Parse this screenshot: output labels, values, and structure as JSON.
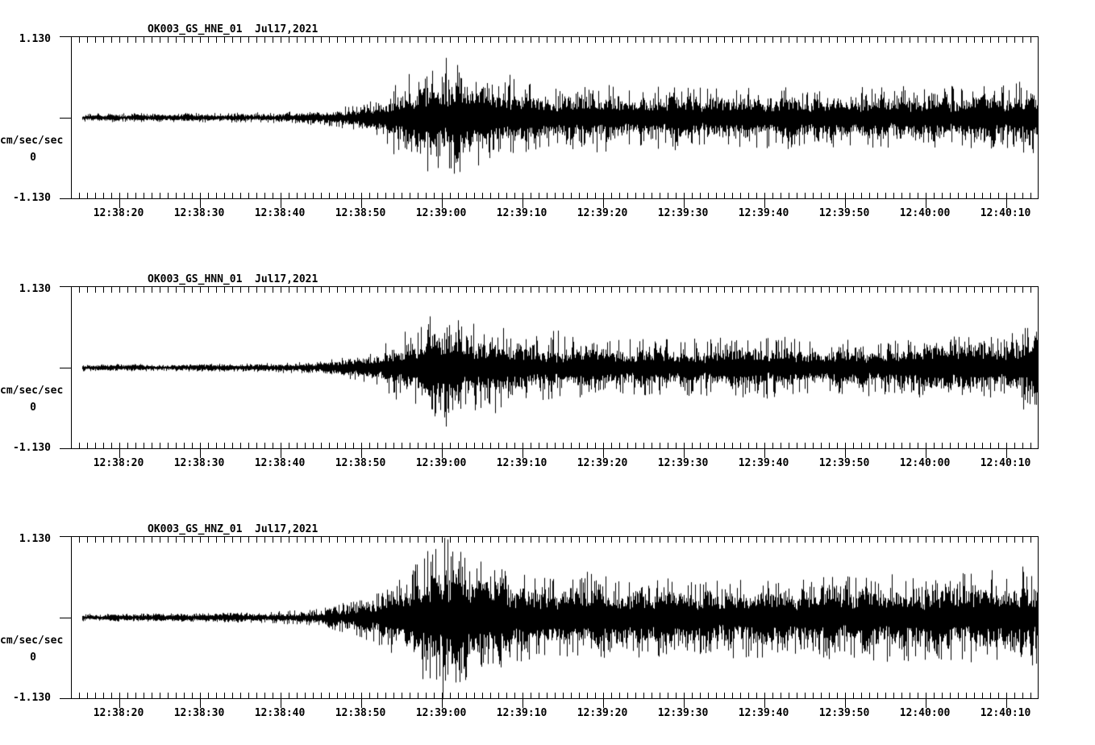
{
  "page": {
    "background": "#ffffff",
    "ink": "#000000"
  },
  "chart_data": [
    {
      "type": "line",
      "kind": "seismogram-waveform",
      "title": "OK003_GS_HNE_01  Jul17,2021",
      "station_channel": "OK003_GS_HNE_01",
      "date_label": "Jul17,2021",
      "ylabel": "cm/sec/sec",
      "ylim": [
        -1.13,
        1.13
      ],
      "ytick_labels": {
        "top": "1.130",
        "mid": "0",
        "bottom": "-1.130"
      },
      "x_tick_labels": [
        "12:38:20",
        "12:38:30",
        "12:38:40",
        "12:38:50",
        "12:39:00",
        "12:39:10",
        "12:39:20",
        "12:39:30",
        "12:39:40",
        "12:39:50",
        "12:40:00",
        "12:40:10"
      ],
      "x_axis": {
        "span_sec": 119.8,
        "first_label_offset_sec": 5.9,
        "major_interval_sec": 10,
        "minor_interval_sec": 1,
        "grid": false
      },
      "trace": {
        "units": "cm/sec/sec",
        "start_offset_sec": 1.3,
        "envelope_desc": "[offset_sec, core_amplitude, peak_amplitude]",
        "envelope": [
          [
            1.3,
            0.03,
            0.06
          ],
          [
            20,
            0.035,
            0.07
          ],
          [
            27,
            0.045,
            0.09
          ],
          [
            31,
            0.06,
            0.11
          ],
          [
            34,
            0.09,
            0.16
          ],
          [
            36.5,
            0.12,
            0.22
          ],
          [
            38.5,
            0.17,
            0.34
          ],
          [
            40,
            0.26,
            0.55
          ],
          [
            42,
            0.32,
            0.65
          ],
          [
            44,
            0.36,
            0.75
          ],
          [
            45.8,
            0.4,
            0.88
          ],
          [
            47.5,
            0.4,
            0.82
          ],
          [
            49.5,
            0.36,
            0.78
          ],
          [
            51.5,
            0.3,
            0.58
          ],
          [
            53.5,
            0.3,
            0.68
          ],
          [
            55.5,
            0.26,
            0.5
          ],
          [
            58,
            0.24,
            0.46
          ],
          [
            62,
            0.23,
            0.44
          ],
          [
            66,
            0.24,
            0.5
          ],
          [
            70,
            0.22,
            0.42
          ],
          [
            75,
            0.22,
            0.46
          ],
          [
            80,
            0.21,
            0.42
          ],
          [
            85,
            0.21,
            0.44
          ],
          [
            90,
            0.22,
            0.46
          ],
          [
            95,
            0.21,
            0.42
          ],
          [
            100,
            0.21,
            0.44
          ],
          [
            105,
            0.22,
            0.46
          ],
          [
            110,
            0.23,
            0.44
          ],
          [
            114,
            0.24,
            0.46
          ],
          [
            117,
            0.26,
            0.5
          ],
          [
            119.8,
            0.28,
            0.52
          ]
        ]
      }
    },
    {
      "type": "line",
      "kind": "seismogram-waveform",
      "title": "OK003_GS_HNN_01  Jul17,2021",
      "station_channel": "OK003_GS_HNN_01",
      "date_label": "Jul17,2021",
      "ylabel": "cm/sec/sec",
      "ylim": [
        -1.13,
        1.13
      ],
      "ytick_labels": {
        "top": "1.130",
        "mid": "0",
        "bottom": "-1.130"
      },
      "x_tick_labels": [
        "12:38:20",
        "12:38:30",
        "12:38:40",
        "12:38:50",
        "12:39:00",
        "12:39:10",
        "12:39:20",
        "12:39:30",
        "12:39:40",
        "12:39:50",
        "12:40:00",
        "12:40:10"
      ],
      "x_axis": {
        "span_sec": 119.8,
        "first_label_offset_sec": 5.9,
        "major_interval_sec": 10,
        "minor_interval_sec": 1,
        "grid": false
      },
      "trace": {
        "units": "cm/sec/sec",
        "start_offset_sec": 1.3,
        "envelope_desc": "[offset_sec, core_amplitude, peak_amplitude]",
        "envelope": [
          [
            1.3,
            0.025,
            0.05
          ],
          [
            20,
            0.03,
            0.055
          ],
          [
            26,
            0.04,
            0.075
          ],
          [
            30,
            0.05,
            0.09
          ],
          [
            33,
            0.07,
            0.13
          ],
          [
            36,
            0.1,
            0.19
          ],
          [
            38,
            0.14,
            0.28
          ],
          [
            40,
            0.21,
            0.44
          ],
          [
            42,
            0.28,
            0.6
          ],
          [
            44,
            0.33,
            0.7
          ],
          [
            46,
            0.37,
            0.8
          ],
          [
            47.6,
            0.38,
            0.92
          ],
          [
            49,
            0.36,
            0.8
          ],
          [
            51,
            0.3,
            0.62
          ],
          [
            53,
            0.26,
            0.68
          ],
          [
            55,
            0.23,
            0.48
          ],
          [
            58,
            0.22,
            0.44
          ],
          [
            60.5,
            0.21,
            0.55
          ],
          [
            63,
            0.2,
            0.42
          ],
          [
            68,
            0.2,
            0.4
          ],
          [
            74,
            0.19,
            0.4
          ],
          [
            80,
            0.19,
            0.42
          ],
          [
            86,
            0.2,
            0.44
          ],
          [
            92,
            0.2,
            0.42
          ],
          [
            98,
            0.19,
            0.4
          ],
          [
            104,
            0.2,
            0.42
          ],
          [
            109,
            0.21,
            0.44
          ],
          [
            113,
            0.21,
            0.42
          ],
          [
            116,
            0.24,
            0.5
          ],
          [
            118,
            0.28,
            0.6
          ],
          [
            119.8,
            0.26,
            0.52
          ]
        ]
      }
    },
    {
      "type": "line",
      "kind": "seismogram-waveform",
      "title": "OK003_GS_HNZ_01  Jul17,2021",
      "station_channel": "OK003_GS_HNZ_01",
      "date_label": "Jul17,2021",
      "ylabel": "cm/sec/sec",
      "ylim": [
        -1.13,
        1.13
      ],
      "ytick_labels": {
        "top": "1.130",
        "mid": "0",
        "bottom": "-1.130"
      },
      "x_tick_labels": [
        "12:38:20",
        "12:38:30",
        "12:38:40",
        "12:38:50",
        "12:39:00",
        "12:39:10",
        "12:39:20",
        "12:39:30",
        "12:39:40",
        "12:39:50",
        "12:40:00",
        "12:40:10"
      ],
      "x_axis": {
        "span_sec": 119.8,
        "first_label_offset_sec": 5.9,
        "major_interval_sec": 10,
        "minor_interval_sec": 1,
        "grid": false
      },
      "trace": {
        "units": "cm/sec/sec",
        "start_offset_sec": 1.3,
        "envelope_desc": "[offset_sec, core_amplitude, peak_amplitude]",
        "envelope": [
          [
            1.3,
            0.03,
            0.055
          ],
          [
            16,
            0.035,
            0.06
          ],
          [
            24,
            0.045,
            0.08
          ],
          [
            29,
            0.06,
            0.11
          ],
          [
            32,
            0.09,
            0.16
          ],
          [
            35,
            0.13,
            0.25
          ],
          [
            37.5,
            0.18,
            0.36
          ],
          [
            40,
            0.28,
            0.58
          ],
          [
            42,
            0.38,
            0.72
          ],
          [
            44,
            0.52,
            0.92
          ],
          [
            45.8,
            0.62,
            1.18
          ],
          [
            47.2,
            0.58,
            1.08
          ],
          [
            49,
            0.5,
            0.92
          ],
          [
            51,
            0.42,
            0.78
          ],
          [
            53,
            0.38,
            0.72
          ],
          [
            55.5,
            0.35,
            0.62
          ],
          [
            58,
            0.33,
            0.58
          ],
          [
            61,
            0.32,
            0.6
          ],
          [
            64,
            0.33,
            0.66
          ],
          [
            67,
            0.31,
            0.56
          ],
          [
            71,
            0.31,
            0.58
          ],
          [
            75,
            0.3,
            0.55
          ],
          [
            79,
            0.3,
            0.56
          ],
          [
            83,
            0.3,
            0.58
          ],
          [
            87,
            0.3,
            0.55
          ],
          [
            91,
            0.29,
            0.54
          ],
          [
            95,
            0.31,
            0.6
          ],
          [
            99,
            0.32,
            0.62
          ],
          [
            103,
            0.32,
            0.62
          ],
          [
            107,
            0.31,
            0.58
          ],
          [
            110,
            0.33,
            0.62
          ],
          [
            113,
            0.34,
            0.64
          ],
          [
            116,
            0.37,
            0.72
          ],
          [
            118,
            0.38,
            0.74
          ],
          [
            119.8,
            0.36,
            0.68
          ]
        ]
      }
    }
  ]
}
